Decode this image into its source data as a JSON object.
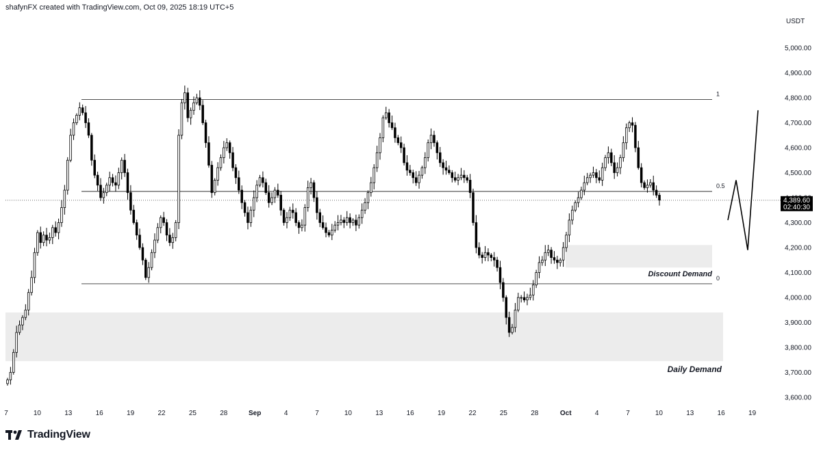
{
  "header": {
    "title": "shafynFX created with TradingView.com, Oct 09, 2025 18:19 UTC+5"
  },
  "axis": {
    "currency": "USDT"
  },
  "brand": {
    "name": "TradingView"
  },
  "chart_data": {
    "type": "candlestick",
    "price_ticks": [
      "5,000.00",
      "4,900.00",
      "4,800.00",
      "4,700.00",
      "4,600.00",
      "4,500.00",
      "4,400.00",
      "4,300.00",
      "4,200.00",
      "4,100.00",
      "4,000.00",
      "3,900.00",
      "3,800.00",
      "3,700.00",
      "3,600.00"
    ],
    "price_values": [
      5000,
      4900,
      4800,
      4700,
      4600,
      4500,
      4400,
      4300,
      4200,
      4100,
      4000,
      3900,
      3800,
      3700,
      3600
    ],
    "ylim": [
      3565,
      5095
    ],
    "date_ticks": [
      "7",
      "10",
      "13",
      "16",
      "19",
      "22",
      "25",
      "28",
      "Sep",
      "4",
      "7",
      "10",
      "13",
      "16",
      "19",
      "22",
      "25",
      "28",
      "Oct",
      "4",
      "7",
      "10",
      "13",
      "16",
      "19"
    ],
    "current_price": {
      "label": "4,389.60",
      "countdown": "02:40:30",
      "value": 4389.6
    },
    "fib_levels": [
      {
        "label": "1",
        "value": 4793
      },
      {
        "label": "0.5",
        "value": 4425
      },
      {
        "label": "0",
        "value": 4055
      }
    ],
    "zones": [
      {
        "label": "Discount Demand",
        "top": 4210,
        "bottom": 4120
      },
      {
        "label": "Daily Demand",
        "top": 3940,
        "bottom": 3745
      }
    ],
    "candles_close": [
      3670,
      3700,
      3780,
      3860,
      3890,
      3920,
      3950,
      4020,
      4080,
      4180,
      4260,
      4220,
      4250,
      4230,
      4240,
      4280,
      4260,
      4300,
      4360,
      4430,
      4550,
      4650,
      4700,
      4730,
      4760,
      4740,
      4700,
      4650,
      4550,
      4490,
      4450,
      4400,
      4420,
      4450,
      4480,
      4460,
      4450,
      4500,
      4550,
      4500,
      4420,
      4350,
      4300,
      4250,
      4200,
      4150,
      4080,
      4120,
      4180,
      4230,
      4280,
      4320,
      4300,
      4250,
      4220,
      4240,
      4300,
      4650,
      4780,
      4820,
      4720,
      4750,
      4780,
      4800,
      4770,
      4700,
      4620,
      4530,
      4420,
      4470,
      4520,
      4560,
      4600,
      4620,
      4580,
      4520,
      4480,
      4430,
      4380,
      4340,
      4300,
      4350,
      4400,
      4450,
      4480,
      4460,
      4420,
      4380,
      4400,
      4430,
      4410,
      4350,
      4300,
      4320,
      4350,
      4340,
      4300,
      4280,
      4290,
      4360,
      4440,
      4460,
      4400,
      4340,
      4300,
      4280,
      4260,
      4250,
      4270,
      4290,
      4300,
      4310,
      4300,
      4320,
      4300,
      4310,
      4290,
      4320,
      4350,
      4380,
      4420,
      4460,
      4520,
      4580,
      4640,
      4720,
      4740,
      4700,
      4680,
      4640,
      4620,
      4600,
      4540,
      4510,
      4500,
      4480,
      4460,
      4490,
      4520,
      4560,
      4620,
      4650,
      4620,
      4580,
      4540,
      4520,
      4510,
      4500,
      4480,
      4470,
      4480,
      4490,
      4480,
      4470,
      4420,
      4300,
      4200,
      4170,
      4160,
      4180,
      4170,
      4160,
      4150,
      4120,
      4060,
      4000,
      3920,
      3860,
      3880,
      3950,
      4000,
      4000,
      3990,
      4000,
      4010,
      4050,
      4100,
      4140,
      4150,
      4180,
      4190,
      4160,
      4150,
      4140,
      4150,
      4200,
      4250,
      4310,
      4350,
      4380,
      4400,
      4430,
      4460,
      4480,
      4490,
      4500,
      4480,
      4470,
      4520,
      4560,
      4580,
      4540,
      4500,
      4520,
      4560,
      4620,
      4680,
      4700,
      4690,
      4600,
      4520,
      4460,
      4440,
      4450,
      4460,
      4430,
      4410,
      4390
    ]
  }
}
